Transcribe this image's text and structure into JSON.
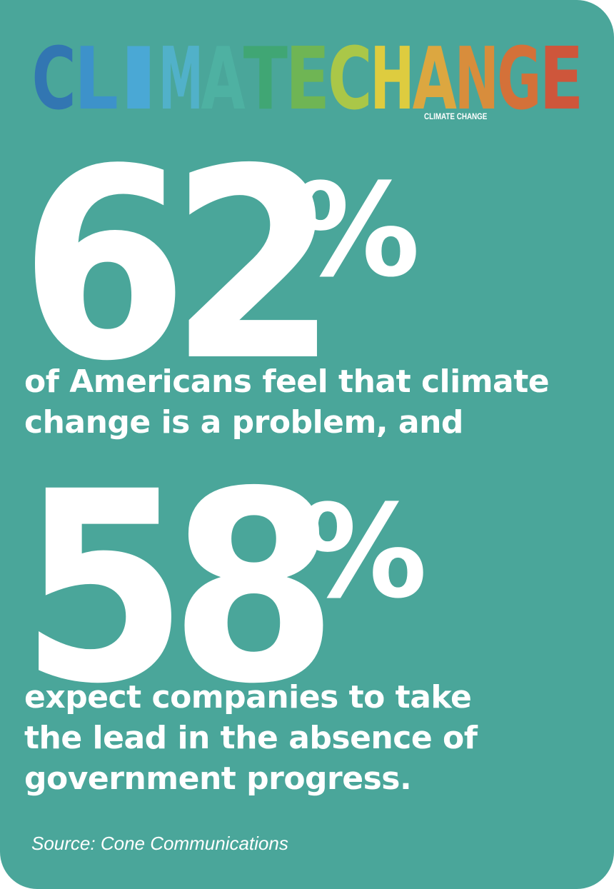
{
  "banner": {
    "title": "CLIMATECHANGE",
    "subtitle": "CLIMATE CHANGE",
    "letter_colors": [
      "#2f6fb5",
      "#3b8fd0",
      "#4aa8dd",
      "#52b3cf",
      "#4fb3a3",
      "#3fa66e",
      "#74b74a",
      "#b7cc3c",
      "#f2d232",
      "#f0a733",
      "#ec8a2f",
      "#e76a2b",
      "#e04b2e"
    ]
  },
  "stat1": {
    "number": "62",
    "percent_sign": "%",
    "lines": [
      "of Americans feel that climate",
      "change is a problem, and"
    ]
  },
  "stat2": {
    "number": "58",
    "percent_sign": "%",
    "lines": [
      "expect companies to take",
      "the lead in the absence of",
      "government progress."
    ]
  },
  "source": "Source: Cone Communications",
  "colors": {
    "background": "#4aa69a",
    "text": "#ffffff"
  }
}
